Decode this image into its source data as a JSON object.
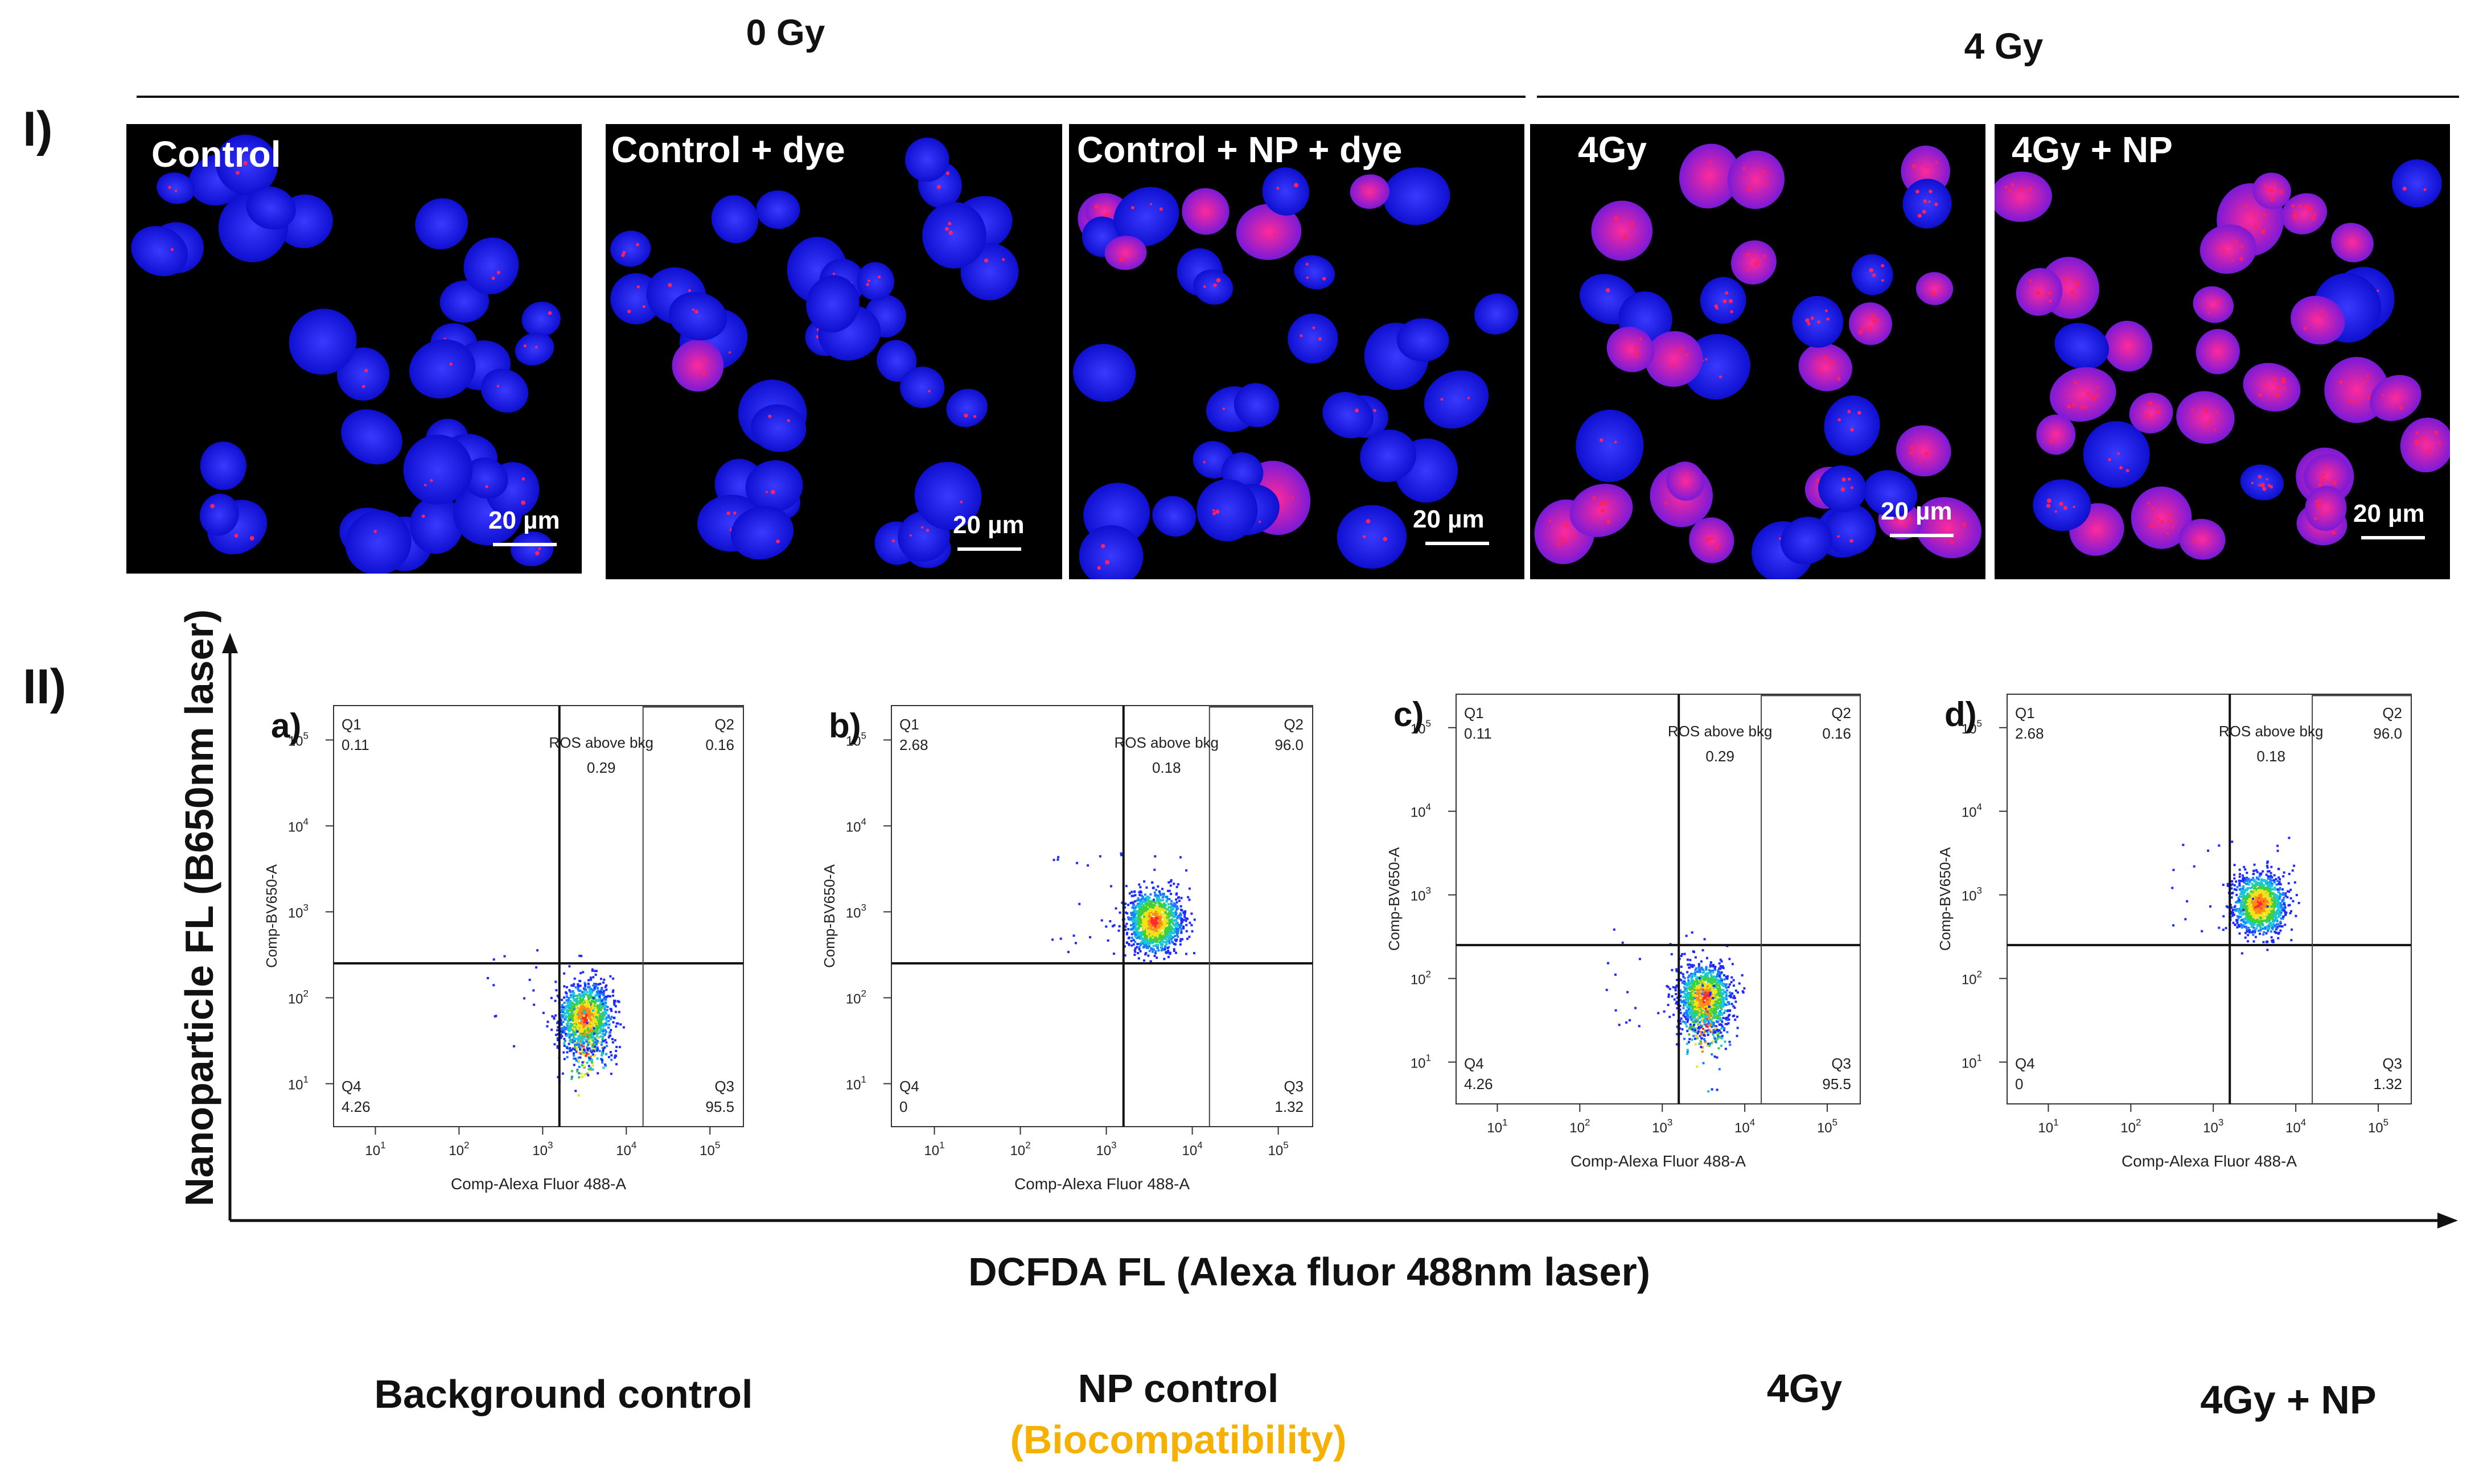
{
  "section_labels": {
    "one": "I)",
    "two": "II)"
  },
  "dose_groups": [
    {
      "label": "0 Gy"
    },
    {
      "label": "4 Gy"
    }
  ],
  "micrographs": [
    {
      "title": "Control",
      "scale_bar": "20 µm",
      "pink_fraction": 0.0
    },
    {
      "title": "Control + dye",
      "scale_bar": "20 µm",
      "pink_fraction": 0.05
    },
    {
      "title": "Control + NP + dye",
      "scale_bar": "20 µm",
      "pink_fraction": 0.15
    },
    {
      "title": "4Gy",
      "scale_bar": "20 µm",
      "pink_fraction": 0.45
    },
    {
      "title": "4Gy + NP",
      "scale_bar": "20 µm",
      "pink_fraction": 0.8
    }
  ],
  "axis": {
    "y_label": "Nanoparticle FL (B650nm laser)",
    "x_label": "DCFDA FL (Alexa fluor 488nm laser)"
  },
  "flow_plots": [
    {
      "letter": "a)",
      "x_label": "Comp-Alexa Fluor 488-A",
      "y_label": "Comp-BV650-A",
      "q1_name": "Q1",
      "q1": "0.11",
      "q2_name": "Q2",
      "q2": "0.16",
      "q3_name": "Q3",
      "q3": "95.5",
      "q4_name": "Q4",
      "q4": "4.26",
      "gate_label": "ROS above bkg",
      "gate_value": "0.29",
      "cluster": {
        "x": 3.5,
        "y": 1.8
      }
    },
    {
      "letter": "b)",
      "x_label": "Comp-Alexa Fluor 488-A",
      "y_label": "Comp-BV650-A",
      "q1_name": "Q1",
      "q1": "2.68",
      "q2_name": "Q2",
      "q2": "96.0",
      "q3_name": "Q3",
      "q3": "1.32",
      "q4_name": "Q4",
      "q4": "0",
      "gate_label": "ROS above bkg",
      "gate_value": "0.18",
      "cluster": {
        "x": 3.55,
        "y": 2.9
      }
    },
    {
      "letter": "c)",
      "x_label": "Comp-Alexa Fluor 488-A",
      "y_label": "Comp-BV650-A",
      "q1_name": "Q1",
      "q1": "0.11",
      "q2_name": "Q2",
      "q2": "0.16",
      "q3_name": "Q3",
      "q3": "95.5",
      "q4_name": "Q4",
      "q4": "4.26",
      "gate_label": "ROS above bkg",
      "gate_value": "0.29",
      "cluster": {
        "x": 3.5,
        "y": 1.8
      }
    },
    {
      "letter": "d)",
      "x_label": "Comp-Alexa Fluor 488-A",
      "y_label": "Comp-BV650-A",
      "q1_name": "Q1",
      "q1": "2.68",
      "q2_name": "Q2",
      "q2": "96.0",
      "q3_name": "Q3",
      "q3": "1.32",
      "q4_name": "Q4",
      "q4": "0",
      "gate_label": "ROS above bkg",
      "gate_value": "0.18",
      "cluster": {
        "x": 3.55,
        "y": 2.9
      }
    }
  ],
  "flow_axis_ticks": {
    "x_tick_labels": [
      "10^1",
      "10^2",
      "10^3",
      "10^4",
      "10^5"
    ],
    "y_tick_labels": [
      "10^1",
      "10^2",
      "10^3",
      "10^4",
      "10^5"
    ],
    "x_gate_log": 3.2,
    "y_gate_log": 2.4,
    "q2_gate_log": 4.2
  },
  "bottom_labels": [
    {
      "label": "Background control"
    },
    {
      "label": "NP control",
      "sub": "(Biocompatibility)"
    },
    {
      "label": "4Gy"
    },
    {
      "label": "4Gy + NP"
    }
  ],
  "colors": {
    "nucleus": "#1a1aff",
    "pink": "#ff1a8c",
    "sub_label": "#f5b000"
  }
}
